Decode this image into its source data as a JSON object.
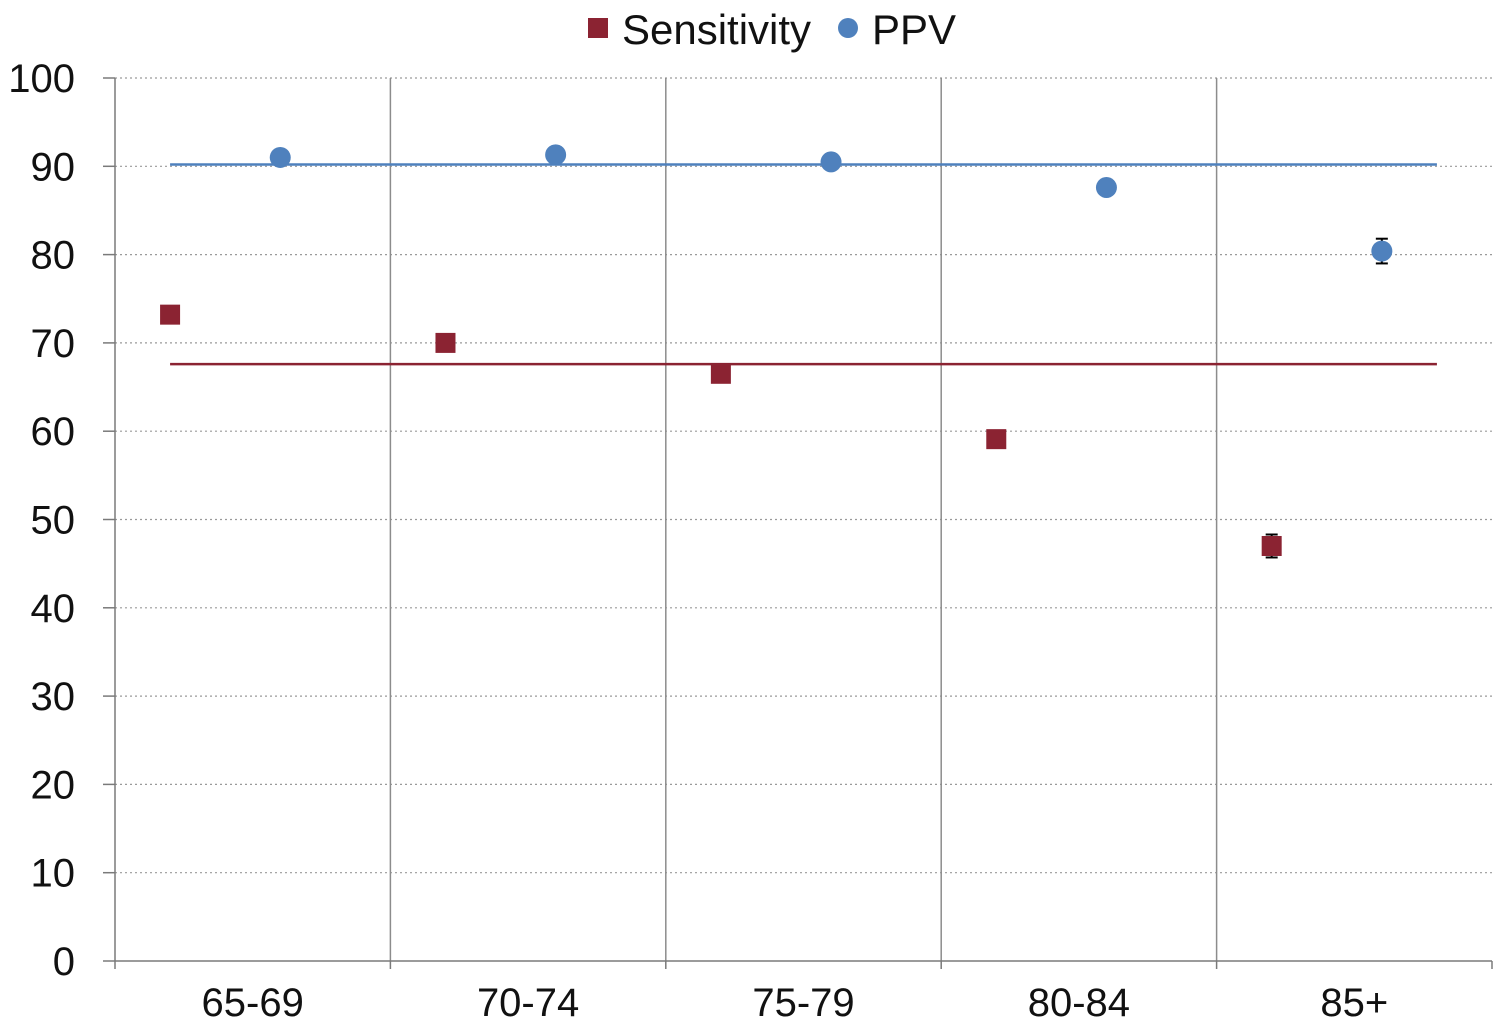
{
  "chart_data": {
    "type": "scatter",
    "categories": [
      "65-69",
      "70-74",
      "75-79",
      "80-84",
      "85+"
    ],
    "series": [
      {
        "name": "Sensitivity",
        "marker": "square",
        "color": "#8B2332",
        "values": [
          73.2,
          70.0,
          66.5,
          59.1,
          47.0
        ],
        "error": [
          null,
          null,
          null,
          null,
          1.3
        ],
        "reference_line": 67.6
      },
      {
        "name": "PPV",
        "marker": "circle",
        "color": "#4F81BD",
        "values": [
          91.0,
          91.3,
          90.5,
          87.6,
          80.4
        ],
        "error": [
          null,
          null,
          null,
          null,
          1.4
        ],
        "reference_line": 90.2
      }
    ],
    "xlabel": "",
    "ylabel": "",
    "ylim": [
      0,
      100
    ],
    "yticks": [
      0,
      10,
      20,
      30,
      40,
      50,
      60,
      70,
      80,
      90,
      100
    ],
    "grid": "horizontal dotted, vertical solid category separators",
    "legend_position": "top-center"
  }
}
